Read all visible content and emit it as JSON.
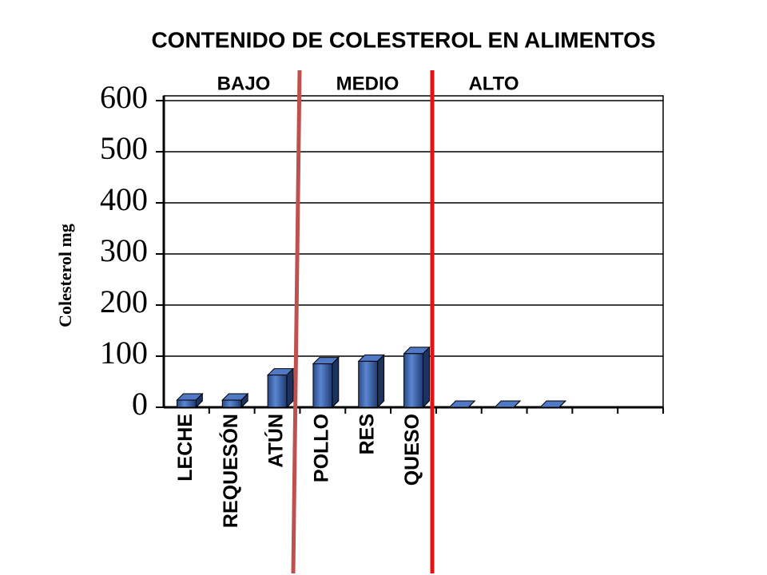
{
  "chart_data": {
    "type": "bar",
    "title": "CONTENIDO DE COLESTEROL EN ALIMENTOS",
    "y_label": "Colesterol mg",
    "annotations": [
      "BAJO",
      "MEDIO",
      "ALTO"
    ],
    "categories": [
      "LECHE",
      "REQUESÓN",
      "ATÚN",
      "POLLO",
      "RES",
      "QUESO",
      null,
      null,
      null,
      null,
      null
    ],
    "values": [
      14,
      14,
      63,
      85,
      90,
      105,
      0,
      0,
      0,
      null,
      null
    ],
    "color": "#3a62a8",
    "ylim": [
      0,
      600
    ],
    "yticks": [
      0,
      100,
      200,
      300,
      400,
      500,
      600
    ],
    "grid": true
  }
}
